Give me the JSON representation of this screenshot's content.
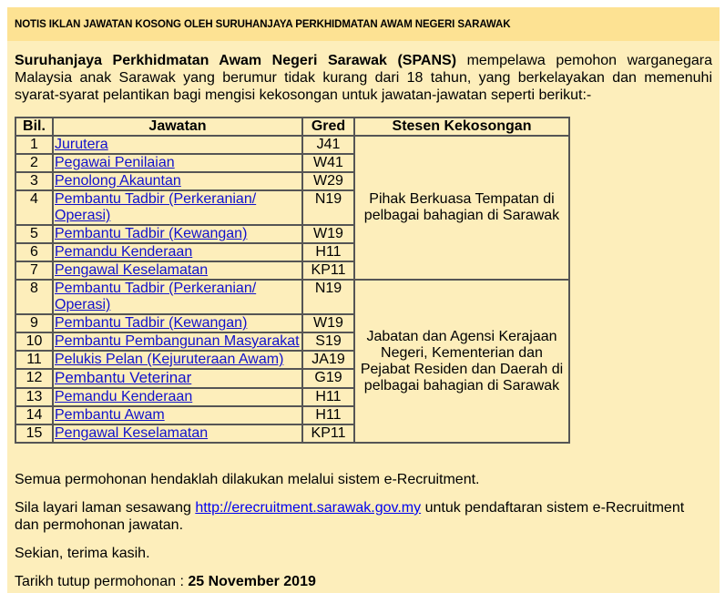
{
  "header": {
    "title": "NOTIS IKLAN JAWATAN KOSONG OLEH SURUHANJAYA PERKHIDMATAN AWAM NEGERI SARAWAK"
  },
  "intro": {
    "org_bold": "Suruhanjaya Perkhidmatan Awam Negeri Sarawak (SPANS)",
    "text": " mempelawa pemohon warganegara Malaysia anak Sarawak yang berumur tidak kurang dari 18 tahun, yang berkelayakan dan memenuhi syarat-syarat pelantikan bagi mengisi kekosongan untuk jawatan-jawatan seperti berikut:-"
  },
  "table": {
    "headers": [
      "Bil.",
      "Jawatan",
      "Gred",
      "Stesen Kekosongan"
    ],
    "groups": [
      {
        "station": "Pihak Berkuasa Tempatan di pelbagai bahagian di Sarawak",
        "rows": [
          {
            "no": "1",
            "post": "Jurutera",
            "grade": "J41"
          },
          {
            "no": "2",
            "post": "Pegawai Penilaian",
            "grade": "W41"
          },
          {
            "no": "3",
            "post": "Penolong Akauntan",
            "grade": "W29"
          },
          {
            "no": "4",
            "post": "Pembantu Tadbir (Perkeranian/ Operasi)",
            "grade": "N19"
          },
          {
            "no": "5",
            "post": "Pembantu Tadbir (Kewangan)",
            "grade": "W19"
          },
          {
            "no": "6",
            "post": "Pemandu Kenderaan",
            "grade": "H11"
          },
          {
            "no": "7",
            "post": "Pengawal Keselamatan",
            "grade": "KP11"
          }
        ]
      },
      {
        "station": "Jabatan dan Agensi Kerajaan Negeri, Kementerian dan Pejabat Residen dan Daerah di pelbagai bahagian di Sarawak",
        "rows": [
          {
            "no": "8",
            "post": "Pembantu Tadbir (Perkeranian/ Operasi)",
            "grade": "N19"
          },
          {
            "no": "9",
            "post": "Pembantu Tadbir (Kewangan)",
            "grade": "W19"
          },
          {
            "no": "10",
            "post": "Pembantu Pembangunan Masyarakat",
            "grade": "S19"
          },
          {
            "no": "11",
            "post": "Pelukis Pelan (Kejuruteraan Awam)",
            "grade": "JA19"
          },
          {
            "no": "12",
            "post": "Pembantu Veterinar",
            "grade": "G19"
          },
          {
            "no": "13",
            "post": "Pemandu Kenderaan",
            "grade": "H11"
          },
          {
            "no": "14",
            "post": "Pembantu Awam",
            "grade": "H11"
          },
          {
            "no": "15",
            "post": "Pengawal Keselamatan",
            "grade": "KP11"
          }
        ]
      }
    ]
  },
  "footer": {
    "line1": "Semua permohonan hendaklah dilakukan melalui sistem e-Recruitment.",
    "line2_pre": "Sila layari laman sesawang ",
    "link": "http://erecruitment.sarawak.gov.my",
    "line2_post": " untuk pendaftaran sistem e-Recruitment dan permohonan jawatan.",
    "line3": "Sekian, terima kasih.",
    "closing_label": "Tarikh tutup permohonan : ",
    "closing_date": "25 November 2019"
  }
}
